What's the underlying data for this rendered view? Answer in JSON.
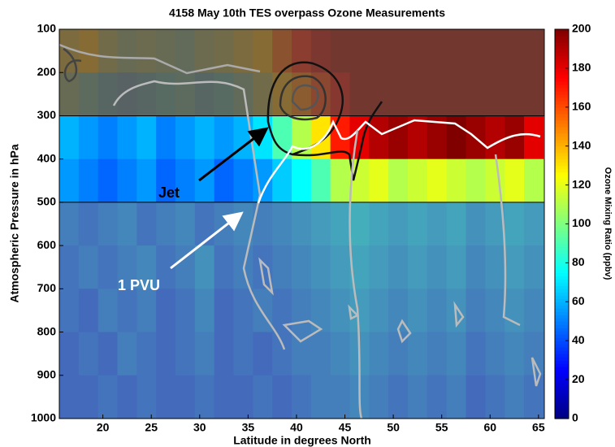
{
  "chart_data": {
    "type": "heatmap",
    "title": "4158 May 10th TES overpass Ozone Measurements",
    "x_label": "Latitude in degrees North",
    "y_label": "Atmospheric Pressure in hPa",
    "x": [
      16.5,
      18.5,
      20.5,
      22.5,
      24.5,
      26.5,
      28.5,
      30.5,
      32.5,
      34.5,
      36.5,
      38.5,
      40.5,
      42.5,
      44.5,
      46.5,
      48.5,
      50.5,
      52.5,
      54.5,
      56.5,
      58.5,
      60.5,
      62.5,
      64.5
    ],
    "y": [
      150,
      250,
      350,
      450,
      550,
      650,
      750,
      850,
      950
    ],
    "values": [
      [
        110,
        120,
        100,
        90,
        95,
        90,
        85,
        95,
        100,
        110,
        120,
        150,
        170,
        190,
        200,
        200,
        200,
        200,
        200,
        200,
        200,
        200,
        200,
        200,
        200
      ],
      [
        90,
        80,
        70,
        65,
        70,
        75,
        80,
        70,
        75,
        85,
        100,
        120,
        140,
        160,
        180,
        200,
        200,
        200,
        200,
        200,
        200,
        200,
        200,
        200,
        200
      ],
      [
        60,
        55,
        50,
        55,
        60,
        50,
        55,
        60,
        55,
        60,
        70,
        90,
        110,
        130,
        170,
        180,
        190,
        195,
        190,
        195,
        200,
        195,
        190,
        195,
        180
      ],
      [
        55,
        50,
        45,
        50,
        55,
        45,
        50,
        55,
        45,
        50,
        55,
        65,
        75,
        90,
        110,
        115,
        120,
        110,
        115,
        120,
        115,
        110,
        115,
        120,
        110
      ],
      [
        50,
        45,
        50,
        55,
        45,
        50,
        55,
        45,
        50,
        55,
        50,
        55,
        60,
        65,
        70,
        75,
        70,
        65,
        70,
        65,
        70,
        60,
        65,
        70,
        65
      ],
      [
        45,
        50,
        45,
        50,
        55,
        45,
        50,
        60,
        45,
        50,
        45,
        50,
        55,
        60,
        65,
        70,
        65,
        60,
        65,
        60,
        65,
        55,
        60,
        65,
        60
      ],
      [
        45,
        40,
        50,
        45,
        50,
        40,
        45,
        55,
        40,
        45,
        50,
        45,
        50,
        55,
        60,
        65,
        60,
        55,
        60,
        55,
        60,
        50,
        55,
        60,
        55
      ],
      [
        40,
        45,
        40,
        50,
        45,
        40,
        45,
        50,
        40,
        45,
        40,
        45,
        50,
        50,
        55,
        60,
        55,
        50,
        55,
        50,
        55,
        45,
        50,
        55,
        50
      ],
      [
        40,
        40,
        45,
        40,
        45,
        40,
        40,
        45,
        40,
        40,
        45,
        40,
        45,
        50,
        50,
        55,
        50,
        45,
        50,
        45,
        50,
        40,
        45,
        50,
        45
      ]
    ],
    "xlim": [
      15.5,
      65.6
    ],
    "ylim": [
      1000,
      100
    ],
    "xticks": [
      20,
      25,
      30,
      35,
      40,
      45,
      50,
      55,
      60,
      65
    ],
    "yticks": [
      100,
      200,
      300,
      400,
      500,
      600,
      700,
      800,
      900,
      1000
    ],
    "y_inverted": true,
    "unshaded_band": [
      300,
      500
    ],
    "colormap": "jet",
    "colorbar": {
      "label": "Ozone Mixing Ratio (ppbv)",
      "lim": [
        0,
        200
      ],
      "ticks": [
        0,
        20,
        40,
        60,
        80,
        100,
        120,
        140,
        160,
        180,
        200
      ]
    },
    "annotations": [
      "Jet",
      "1 PVU"
    ]
  }
}
